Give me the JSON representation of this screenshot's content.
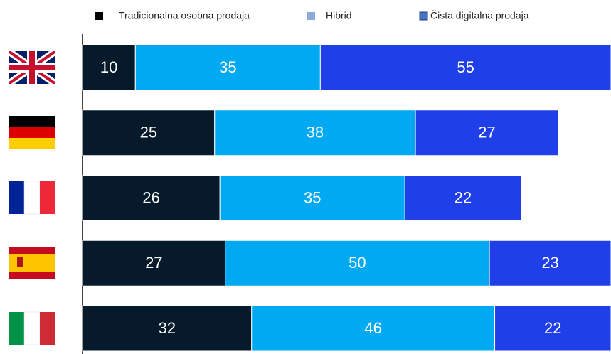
{
  "chart_data": {
    "type": "stacked_barh",
    "categories": [
      null,
      null,
      null,
      null,
      null
    ],
    "series": [
      {
        "name": "Tradicionalna osobna prodaja",
        "color": "#071a2b",
        "legend_color": "#000000",
        "values": [
          10,
          25,
          26,
          27,
          32
        ]
      },
      {
        "name": "Hibrid",
        "color": "#00a9f1",
        "legend_color": "#8eaadb",
        "values": [
          35,
          38,
          35,
          50,
          46
        ]
      },
      {
        "name": "Čista digitalna prodaja",
        "color": "#1f3fe8",
        "legend_color": "#4472c4",
        "values": [
          55,
          27,
          22,
          23,
          22
        ]
      }
    ],
    "xlim": [
      0,
      100
    ]
  }
}
